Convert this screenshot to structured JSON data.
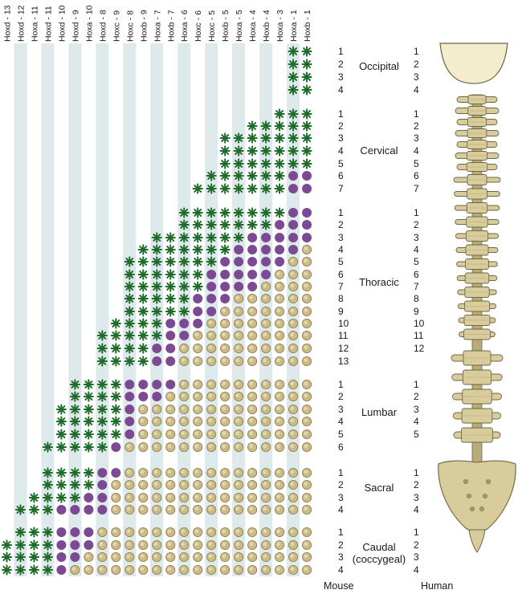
{
  "genes": [
    "Hoxd - 13",
    "Hoxd - 12",
    "Hoxa - 11",
    "Hoxd - 11",
    "Hoxd - 10",
    "Hoxd - 9",
    "Hoxa - 10",
    "Hoxd - 8",
    "Hoxc - 9",
    "Hoxc - 8",
    "Hoxb - 9",
    "Hoxa - 7",
    "Hoxb - 7",
    "Hoxa - 6",
    "Hoxc - 6",
    "Hoxc - 5",
    "Hoxb - 5",
    "Hoxa - 5",
    "Hoxa - 4",
    "Hoxb - 4",
    "Hoxa - 3",
    "Hoxa - 1",
    "Hoxb - 1"
  ],
  "regions": [
    {
      "name": "Occipital",
      "mouse_count": 4,
      "human_count": 4
    },
    {
      "name": "Cervical",
      "mouse_count": 7,
      "human_count": 7
    },
    {
      "name": "Thoracic",
      "mouse_count": 13,
      "human_count": 12
    },
    {
      "name": "Lumbar",
      "mouse_count": 6,
      "human_count": 5
    },
    {
      "name": "Sacral",
      "mouse_count": 4,
      "human_count": 4
    },
    {
      "name": "Caudal\n(coccygeal)",
      "mouse_count": 4,
      "human_count": 4
    }
  ],
  "expression_rows": [
    [
      "",
      "",
      "",
      "",
      "",
      "",
      "",
      "",
      "",
      "",
      "",
      "",
      "",
      "",
      "",
      "",
      "",
      "",
      "",
      "",
      "",
      "A",
      "A"
    ],
    [
      "",
      "",
      "",
      "",
      "",
      "",
      "",
      "",
      "",
      "",
      "",
      "",
      "",
      "",
      "",
      "",
      "",
      "",
      "",
      "",
      "",
      "A",
      "A"
    ],
    [
      "",
      "",
      "",
      "",
      "",
      "",
      "",
      "",
      "",
      "",
      "",
      "",
      "",
      "",
      "",
      "",
      "",
      "",
      "",
      "",
      "",
      "A",
      "A"
    ],
    [
      "",
      "",
      "",
      "",
      "",
      "",
      "",
      "",
      "",
      "",
      "",
      "",
      "",
      "",
      "",
      "",
      "",
      "",
      "",
      "",
      "",
      "A",
      "A"
    ],
    [
      "",
      "",
      "",
      "",
      "",
      "",
      "",
      "",
      "",
      "",
      "",
      "",
      "",
      "",
      "",
      "",
      "",
      "",
      "",
      "",
      "A",
      "A",
      "A"
    ],
    [
      "",
      "",
      "",
      "",
      "",
      "",
      "",
      "",
      "",
      "",
      "",
      "",
      "",
      "",
      "",
      "",
      "",
      "",
      "A",
      "A",
      "A",
      "A",
      "A"
    ],
    [
      "",
      "",
      "",
      "",
      "",
      "",
      "",
      "",
      "",
      "",
      "",
      "",
      "",
      "",
      "",
      "",
      "A",
      "A",
      "A",
      "A",
      "A",
      "A",
      "A"
    ],
    [
      "",
      "",
      "",
      "",
      "",
      "",
      "",
      "",
      "",
      "",
      "",
      "",
      "",
      "",
      "",
      "",
      "A",
      "A",
      "A",
      "A",
      "A",
      "A",
      "A"
    ],
    [
      "",
      "",
      "",
      "",
      "",
      "",
      "",
      "",
      "",
      "",
      "",
      "",
      "",
      "",
      "",
      "",
      "A",
      "A",
      "A",
      "A",
      "A",
      "A",
      "A"
    ],
    [
      "",
      "",
      "",
      "",
      "",
      "",
      "",
      "",
      "",
      "",
      "",
      "",
      "",
      "",
      "",
      "A",
      "A",
      "A",
      "A",
      "A",
      "A",
      "M",
      "M"
    ],
    [
      "",
      "",
      "",
      "",
      "",
      "",
      "",
      "",
      "",
      "",
      "",
      "",
      "",
      "",
      "A",
      "A",
      "A",
      "A",
      "A",
      "A",
      "A",
      "M",
      "M"
    ],
    [
      "",
      "",
      "",
      "",
      "",
      "",
      "",
      "",
      "",
      "",
      "",
      "",
      "",
      "A",
      "A",
      "A",
      "A",
      "A",
      "A",
      "A",
      "A",
      "M",
      "M"
    ],
    [
      "",
      "",
      "",
      "",
      "",
      "",
      "",
      "",
      "",
      "",
      "",
      "",
      "",
      "A",
      "A",
      "A",
      "A",
      "A",
      "A",
      "A",
      "M",
      "M",
      "M"
    ],
    [
      "",
      "",
      "",
      "",
      "",
      "",
      "",
      "",
      "",
      "",
      "",
      "A",
      "A",
      "A",
      "A",
      "A",
      "A",
      "A",
      "M",
      "M",
      "M",
      "M",
      "M"
    ],
    [
      "",
      "",
      "",
      "",
      "",
      "",
      "",
      "",
      "",
      "",
      "A",
      "A",
      "A",
      "A",
      "A",
      "A",
      "A",
      "M",
      "M",
      "M",
      "M",
      "M",
      "V"
    ],
    [
      "",
      "",
      "",
      "",
      "",
      "",
      "",
      "",
      "",
      "A",
      "A",
      "A",
      "A",
      "A",
      "A",
      "A",
      "M",
      "M",
      "M",
      "M",
      "M",
      "V",
      "V"
    ],
    [
      "",
      "",
      "",
      "",
      "",
      "",
      "",
      "",
      "",
      "A",
      "A",
      "A",
      "A",
      "A",
      "A",
      "M",
      "M",
      "M",
      "M",
      "M",
      "V",
      "V",
      "V"
    ],
    [
      "",
      "",
      "",
      "",
      "",
      "",
      "",
      "",
      "",
      "A",
      "A",
      "A",
      "A",
      "A",
      "A",
      "M",
      "M",
      "M",
      "M",
      "V",
      "V",
      "V",
      "V"
    ],
    [
      "",
      "",
      "",
      "",
      "",
      "",
      "",
      "",
      "",
      "A",
      "A",
      "A",
      "A",
      "A",
      "M",
      "M",
      "M",
      "V",
      "V",
      "V",
      "V",
      "V",
      "V"
    ],
    [
      "",
      "",
      "",
      "",
      "",
      "",
      "",
      "",
      "",
      "A",
      "A",
      "A",
      "A",
      "A",
      "M",
      "M",
      "V",
      "V",
      "V",
      "V",
      "V",
      "V",
      "V"
    ],
    [
      "",
      "",
      "",
      "",
      "",
      "",
      "",
      "",
      "A",
      "A",
      "A",
      "A",
      "M",
      "M",
      "M",
      "V",
      "V",
      "V",
      "V",
      "V",
      "V",
      "V",
      "V"
    ],
    [
      "",
      "",
      "",
      "",
      "",
      "",
      "",
      "A",
      "A",
      "A",
      "A",
      "A",
      "M",
      "M",
      "V",
      "V",
      "V",
      "V",
      "V",
      "V",
      "V",
      "V",
      "V"
    ],
    [
      "",
      "",
      "",
      "",
      "",
      "",
      "",
      "A",
      "A",
      "A",
      "A",
      "M",
      "M",
      "V",
      "V",
      "V",
      "V",
      "V",
      "V",
      "V",
      "V",
      "V",
      "V"
    ],
    [
      "",
      "",
      "",
      "",
      "",
      "",
      "",
      "A",
      "A",
      "A",
      "A",
      "M",
      "M",
      "V",
      "V",
      "V",
      "V",
      "V",
      "V",
      "V",
      "V",
      "V",
      "V"
    ],
    [
      "",
      "",
      "",
      "",
      "",
      "A",
      "A",
      "A",
      "A",
      "M",
      "M",
      "M",
      "M",
      "V",
      "V",
      "V",
      "V",
      "V",
      "V",
      "V",
      "V",
      "V",
      "V"
    ],
    [
      "",
      "",
      "",
      "",
      "",
      "A",
      "A",
      "A",
      "A",
      "M",
      "M",
      "M",
      "V",
      "V",
      "V",
      "V",
      "V",
      "V",
      "V",
      "V",
      "V",
      "V",
      "V"
    ],
    [
      "",
      "",
      "",
      "",
      "A",
      "A",
      "A",
      "A",
      "A",
      "M",
      "V",
      "V",
      "V",
      "V",
      "V",
      "V",
      "V",
      "V",
      "V",
      "V",
      "V",
      "V",
      "V"
    ],
    [
      "",
      "",
      "",
      "",
      "A",
      "A",
      "A",
      "A",
      "A",
      "M",
      "V",
      "V",
      "V",
      "V",
      "V",
      "V",
      "V",
      "V",
      "V",
      "V",
      "V",
      "V",
      "V"
    ],
    [
      "",
      "",
      "",
      "",
      "A",
      "A",
      "A",
      "A",
      "A",
      "M",
      "V",
      "V",
      "V",
      "V",
      "V",
      "V",
      "V",
      "V",
      "V",
      "V",
      "V",
      "V",
      "V"
    ],
    [
      "",
      "",
      "",
      "A",
      "A",
      "A",
      "A",
      "A",
      "M",
      "V",
      "V",
      "V",
      "V",
      "V",
      "V",
      "V",
      "V",
      "V",
      "V",
      "V",
      "V",
      "V",
      "V"
    ],
    [
      "",
      "",
      "",
      "A",
      "A",
      "A",
      "A",
      "M",
      "M",
      "V",
      "V",
      "V",
      "V",
      "V",
      "V",
      "V",
      "V",
      "V",
      "V",
      "V",
      "V",
      "V",
      "V"
    ],
    [
      "",
      "",
      "",
      "A",
      "A",
      "A",
      "A",
      "M",
      "V",
      "V",
      "V",
      "V",
      "V",
      "V",
      "V",
      "V",
      "V",
      "V",
      "V",
      "V",
      "V",
      "V",
      "V"
    ],
    [
      "",
      "",
      "A",
      "A",
      "A",
      "A",
      "M",
      "M",
      "V",
      "V",
      "V",
      "V",
      "V",
      "V",
      "V",
      "V",
      "V",
      "V",
      "V",
      "V",
      "V",
      "V",
      "V"
    ],
    [
      "",
      "A",
      "A",
      "A",
      "M",
      "M",
      "M",
      "M",
      "V",
      "V",
      "V",
      "V",
      "V",
      "V",
      "V",
      "V",
      "V",
      "V",
      "V",
      "V",
      "V",
      "V",
      "V"
    ],
    [
      "",
      "A",
      "A",
      "A",
      "M",
      "M",
      "M",
      "V",
      "V",
      "V",
      "V",
      "V",
      "V",
      "V",
      "V",
      "V",
      "V",
      "V",
      "V",
      "V",
      "V",
      "V",
      "V"
    ],
    [
      "A",
      "A",
      "A",
      "A",
      "M",
      "M",
      "M",
      "V",
      "V",
      "V",
      "V",
      "V",
      "V",
      "V",
      "V",
      "V",
      "V",
      "V",
      "V",
      "V",
      "V",
      "V",
      "V"
    ],
    [
      "A",
      "A",
      "A",
      "A",
      "M",
      "M",
      "V",
      "V",
      "V",
      "V",
      "V",
      "V",
      "V",
      "V",
      "V",
      "V",
      "V",
      "V",
      "V",
      "V",
      "V",
      "V",
      "V"
    ],
    [
      "A",
      "A",
      "A",
      "A",
      "M",
      "V",
      "V",
      "V",
      "V",
      "V",
      "V",
      "V",
      "V",
      "V",
      "V",
      "V",
      "V",
      "V",
      "V",
      "V",
      "V",
      "V",
      "V"
    ]
  ],
  "footer": {
    "mouse": "Mouse",
    "human": "Human"
  },
  "colors": {
    "stripe": "#dde9eb",
    "star": "#1f6b2a",
    "purple": "#7b4a93",
    "tan": "#cbbb84",
    "tan_stroke": "#8d7f55",
    "bone": "#d8cc9c",
    "bone_stroke": "#6e6645",
    "skull": "#f3edce"
  }
}
